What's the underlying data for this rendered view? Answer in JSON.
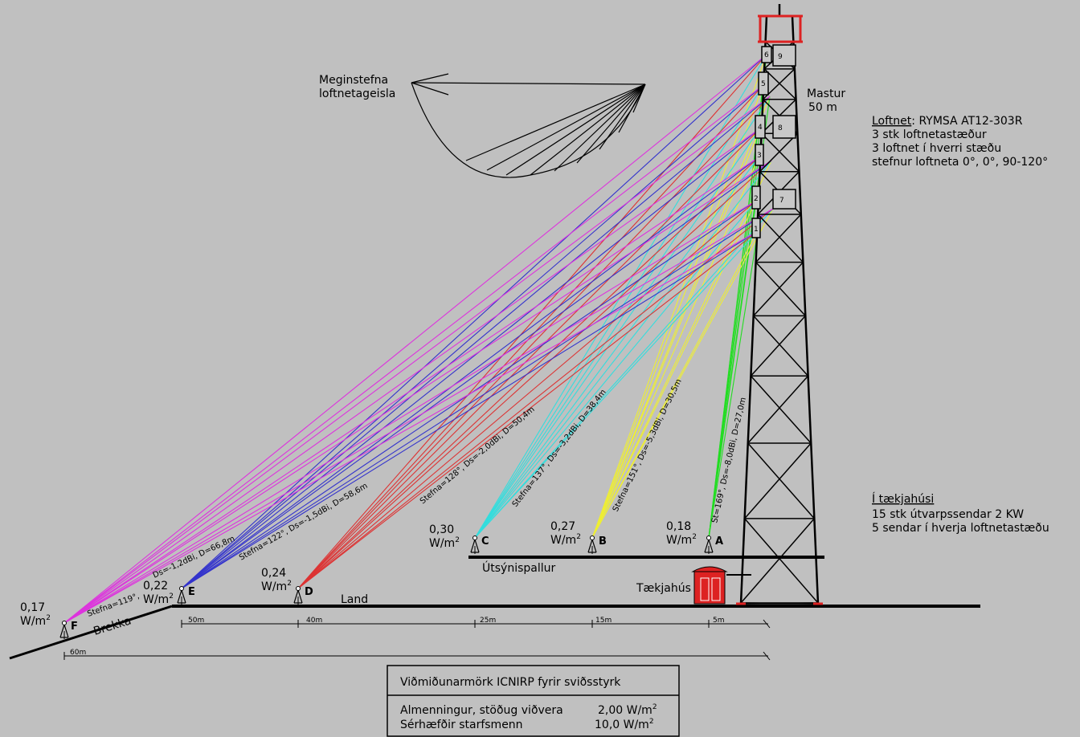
{
  "beam_label": {
    "line1": "Meginstefna",
    "line2": "loftnetageisla"
  },
  "mast_label": {
    "line1": "Mastur",
    "line2": "50 m"
  },
  "antenna_info": {
    "title": "Loftnet",
    "model": ": RYMSA AT12-303R",
    "line2": "3 stk loftnetastæður",
    "line3": "3 loftnet í hverri stæðu",
    "line4": "stefnur loftneta 0°, 0°, 90-120°"
  },
  "equipment_info": {
    "title": "Í tækjahúsi",
    "line2": "15 stk útvarpssendar 2 KW",
    "line3": "5 sendar í hverja loftnetastæðu"
  },
  "places": {
    "platform": "Útsýnispallur",
    "house": "Tækjahús",
    "land": "Land",
    "slope": "Brekka"
  },
  "antenna_numbers": [
    "1",
    "2",
    "3",
    "4",
    "5",
    "6",
    "7",
    "8",
    "9"
  ],
  "points": [
    {
      "id": "A",
      "value": "0,18",
      "unit": "W/m",
      "ray_label": "St=169°, Ds=-8,0dBi, D=27,0m",
      "color": "#22dd22"
    },
    {
      "id": "B",
      "value": "0,27",
      "unit": "W/m",
      "ray_label": "Stefna=151°, Ds=-5,3dBi, D=30,5m",
      "color": "#eeee33"
    },
    {
      "id": "C",
      "value": "0,30",
      "unit": "W/m",
      "ray_label": "Stefna=137°, Ds=-3,2dBi, D=38,4m",
      "color": "#33dddd"
    },
    {
      "id": "D",
      "value": "0,24",
      "unit": "W/m",
      "ray_label": "Stefna=128°, Ds=-2,0dBi, D=50,4m",
      "color": "#dd3333"
    },
    {
      "id": "E",
      "value": "0,22",
      "unit": "W/m",
      "ray_label": "Stefna=122°, Ds=-1,5dBi, D=58,6m",
      "color": "#3333cc"
    },
    {
      "id": "F",
      "value": "0,17",
      "unit": "W/m",
      "ray_label_1": "Stefna=119°,",
      "ray_label_2": "Ds=-1,2dBi, D=66,8m",
      "color": "#dd33dd"
    }
  ],
  "unit_exponent": "2",
  "dimensions": {
    "d50": "50m",
    "d40": "40m",
    "d25": "25m",
    "d15": "15m",
    "d5": "5m",
    "d60": "60m"
  },
  "limits_box": {
    "title": "Viðmiðunarmörk ICNIRP fyrir sviðsstyrk",
    "row1_label": "Almenningur, stöðug viðvera",
    "row1_value": "2,00 W/m",
    "row2_label": "Sérhæfðir starfsmenn",
    "row2_value": "10,0 W/m",
    "exp": "2"
  }
}
